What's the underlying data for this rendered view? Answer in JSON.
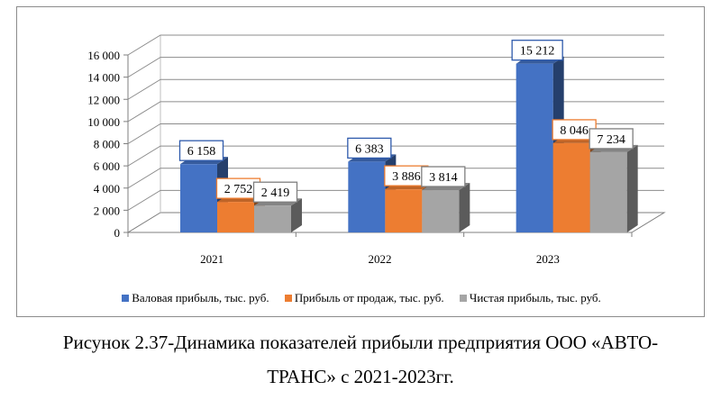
{
  "chart_data": {
    "type": "bar",
    "categories": [
      "2021",
      "2022",
      "2023"
    ],
    "series": [
      {
        "name": "Валовая прибыль, тыс. руб.",
        "values": [
          6158,
          6383,
          15212
        ],
        "labels": [
          "6 158",
          "6 383",
          "15 212"
        ],
        "color": "#4472C4",
        "border": "#2E5AAC"
      },
      {
        "name": "Прибыль от продаж, тыс. руб.",
        "values": [
          2752,
          3886,
          8046
        ],
        "labels": [
          "2 752",
          "3 886",
          "8 046"
        ],
        "color": "#ED7D31",
        "border": "#ED7D31"
      },
      {
        "name": "Чистая прибыль, тыс. руб.",
        "values": [
          2419,
          3814,
          7234
        ],
        "labels": [
          "2 419",
          "3 814",
          "7 234"
        ],
        "color": "#A5A5A5",
        "border": "#7F7F7F"
      }
    ],
    "yticks": [
      0,
      2000,
      4000,
      6000,
      8000,
      10000,
      12000,
      14000,
      16000
    ],
    "ytick_labels": [
      "0",
      "2 000",
      "4 000",
      "6 000",
      "8 000",
      "10 000",
      "12 000",
      "14 000",
      "16 000"
    ],
    "ylim": [
      0,
      16000
    ],
    "grid": true,
    "three_d": true,
    "legend_position": "bottom"
  },
  "caption": {
    "line1": "Рисунок 2.37-Динамика показателей прибыли предприятия ООО «АВТО-",
    "line2": "ТРАНС» с 2021-2023гг."
  }
}
